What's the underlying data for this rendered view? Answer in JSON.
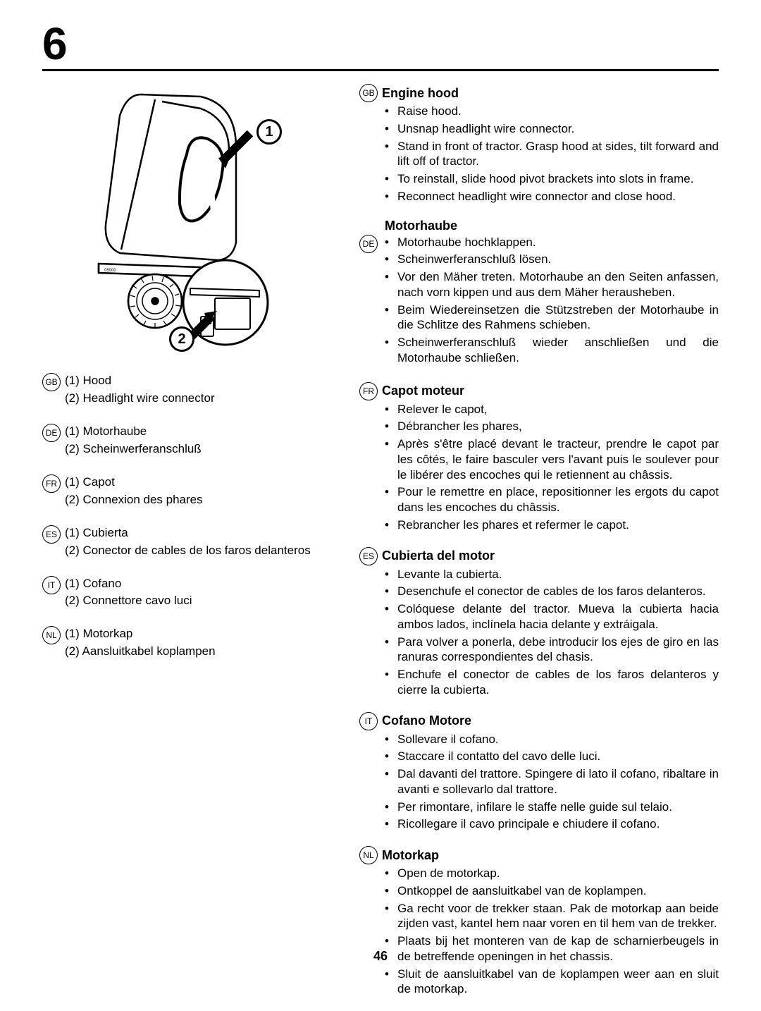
{
  "chapter": "6",
  "page_number": "46",
  "callouts": {
    "one": "1",
    "two": "2"
  },
  "left_legend": [
    {
      "code": "GB",
      "items": [
        "(1)  Hood",
        "(2)  Headlight  wire connector"
      ]
    },
    {
      "code": "DE",
      "items": [
        "(1)  Motorhaube",
        "(2)  Scheinwerferanschluß"
      ]
    },
    {
      "code": "FR",
      "items": [
        "(1)  Capot",
        "(2)  Connexion des phares"
      ]
    },
    {
      "code": "ES",
      "items": [
        "(1)  Cubierta",
        "(2)  Conector de cables de los faros delanteros"
      ]
    },
    {
      "code": "IT",
      "items": [
        "(1)  Cofano",
        "(2)  Connettore cavo luci"
      ]
    },
    {
      "code": "NL",
      "items": [
        "(1)  Motorkap",
        "(2)  Aansluitkabel koplampen"
      ]
    }
  ],
  "right_sections": [
    {
      "code": "GB",
      "title": "Engine hood",
      "bullets": [
        "Raise hood.",
        "Unsnap headlight wire connector.",
        "Stand in front of tractor.  Grasp hood at sides, tilt forward and lift off of tractor.",
        "To reinstall, slide hood pivot brackets into slots in frame.",
        "Reconnect headlight wire connector and close hood."
      ]
    },
    {
      "code": "DE",
      "title": "Motorhaube",
      "title_above": true,
      "bullets": [
        "Motorhaube hochklappen.",
        "Scheinwerferanschluß lösen.",
        "Vor den Mäher treten. Motorhaube an den Seiten anfassen, nach vorn kippen und aus dem Mäher herausheben.",
        "Beim Wiedereinsetzen die Stützstreben der Motorhaube in die Schlitze des Rahmens schieben.",
        "Scheinwerferanschluß wieder anschließen und die Motorhaube schließen."
      ]
    },
    {
      "code": "FR",
      "title": "Capot moteur",
      "bullets": [
        "Relever le capot,",
        "Débrancher les phares,",
        "Après s'être placé devant le tracteur, prendre le capot par les côtés, le faire basculer vers l'avant puis le soulever pour le libérer des encoches qui le retiennent au châssis.",
        "Pour le remettre en place, repositionner les ergots du capot dans les encoches du châssis.",
        "Rebrancher les phares et refermer le capot."
      ]
    },
    {
      "code": "ES",
      "title": "Cubierta del motor",
      "bullets": [
        "Levante la cubierta.",
        "Desenchufe el conector de cables de los faros delanteros.",
        "Colóquese delante del tractor. Mueva la cubierta hacia ambos lados, inclínela hacia delante y extráigala.",
        "Para volver a ponerla, debe introducir los ejes de giro en las ranuras correspondientes del chasis.",
        "Enchufe el conector de cables de los faros delanteros y cierre la cubierta."
      ]
    },
    {
      "code": "IT",
      "title": "Cofano Motore",
      "bullets": [
        "Sollevare il cofano.",
        "Staccare il contatto del cavo delle luci.",
        "Dal davanti del trattore. Spingere di lato il cofano, ribaltare in avanti e sollevarlo dal trattore.",
        "Per rimontare, infilare le staffe nelle guide sul telaio.",
        "Ricollegare il cavo principale e chiudere il cofano."
      ]
    },
    {
      "code": "NL",
      "title": "Motorkap",
      "bullets": [
        "Open de motorkap.",
        "Ontkoppel de aansluitkabel van de koplampen.",
        "Ga recht voor de trekker staan. Pak de motorkap aan beide zijden vast, kantel hem naar voren en til hem van de trekker.",
        "Plaats bij het monteren van de kap de scharnierbeugels in de betreffende openingen in het chassis.",
        "Sluit de aansluitkabel van de koplampen weer aan en sluit de motorkap."
      ]
    }
  ]
}
